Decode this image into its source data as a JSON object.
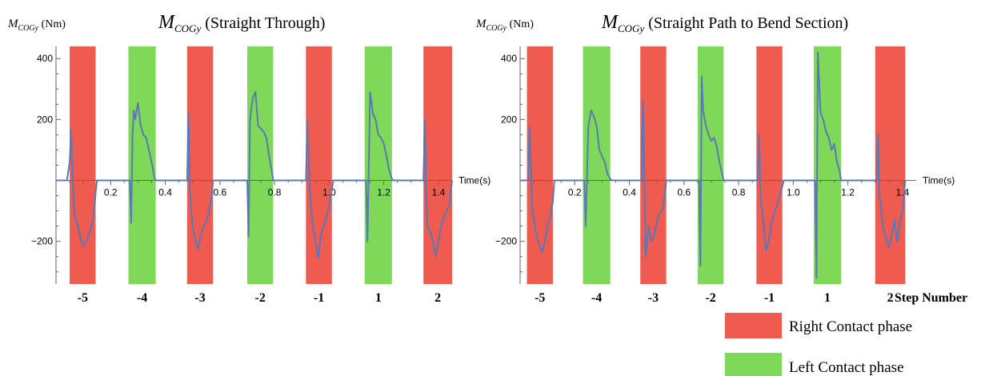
{
  "chart_data": [
    {
      "type": "line",
      "title": "(Straight Through)",
      "title_symbol": "M",
      "title_subscript": "COGy",
      "ylabel_symbol": "M",
      "ylabel_subscript": "COGy",
      "ylabel_unit": "(Nm)",
      "xlabel": "Time(s)",
      "xlim": [
        0,
        1.45
      ],
      "ylim": [
        -340,
        440
      ],
      "x_ticks": [
        "0.2",
        "0.4",
        "0.6",
        "0.8",
        "1.0",
        "1.2",
        "1.4"
      ],
      "y_ticks": [
        "400",
        "200",
        "−200"
      ],
      "grid": false,
      "phases": [
        {
          "side": "right",
          "start": 0.05,
          "end": 0.145,
          "step": "-5"
        },
        {
          "side": "left",
          "start": 0.265,
          "end": 0.365,
          "step": "-4"
        },
        {
          "side": "right",
          "start": 0.48,
          "end": 0.575,
          "step": "-3"
        },
        {
          "side": "left",
          "start": 0.7,
          "end": 0.795,
          "step": "-2"
        },
        {
          "side": "right",
          "start": 0.915,
          "end": 1.01,
          "step": "-1"
        },
        {
          "side": "left",
          "start": 1.13,
          "end": 1.23,
          "step": "1"
        },
        {
          "side": "right",
          "start": 1.345,
          "end": 1.45,
          "step": "2"
        }
      ],
      "series": [
        {
          "x": [
            0,
            0.04,
            0.05,
            0.055,
            0.06,
            0.065,
            0.07,
            0.08,
            0.09,
            0.1,
            0.11,
            0.12,
            0.13,
            0.14,
            0.145,
            0.15,
            0.27,
            0.275,
            0.28,
            0.285,
            0.29,
            0.3,
            0.31,
            0.32,
            0.33,
            0.34,
            0.35,
            0.36,
            0.365,
            0.37,
            0.48,
            0.485,
            0.49,
            0.5,
            0.51,
            0.52,
            0.53,
            0.54,
            0.55,
            0.56,
            0.57,
            0.575,
            0.58,
            0.7,
            0.705,
            0.71,
            0.72,
            0.73,
            0.74,
            0.75,
            0.76,
            0.77,
            0.78,
            0.79,
            0.795,
            0.8,
            0.915,
            0.92,
            0.93,
            0.94,
            0.95,
            0.96,
            0.97,
            0.98,
            0.99,
            1.0,
            1.01,
            1.015,
            1.135,
            1.14,
            1.15,
            1.16,
            1.17,
            1.18,
            1.19,
            1.2,
            1.21,
            1.22,
            1.23,
            1.235,
            1.345,
            1.35,
            1.355,
            1.36,
            1.37,
            1.38,
            1.39,
            1.4,
            1.41,
            1.42,
            1.43,
            1.44,
            1.45
          ],
          "y": [
            0,
            0,
            60,
            165,
            20,
            -80,
            -120,
            -150,
            -190,
            -215,
            -200,
            -180,
            -150,
            -100,
            -40,
            0,
            0,
            -140,
            150,
            230,
            200,
            255,
            180,
            150,
            140,
            100,
            60,
            10,
            0,
            0,
            0,
            220,
            -40,
            -150,
            -200,
            -225,
            -180,
            -150,
            -140,
            -100,
            -50,
            0,
            0,
            0,
            -185,
            200,
            270,
            290,
            180,
            170,
            160,
            140,
            80,
            30,
            0,
            0,
            0,
            200,
            -50,
            -150,
            -200,
            -255,
            -180,
            -150,
            -120,
            -80,
            -30,
            0,
            0,
            -200,
            290,
            220,
            200,
            150,
            140,
            120,
            80,
            30,
            5,
            0,
            0,
            200,
            -40,
            -150,
            -170,
            -200,
            -250,
            -200,
            -150,
            -120,
            -100,
            -80,
            0
          ]
        }
      ]
    },
    {
      "type": "line",
      "title": "(Straight Path to Bend Section)",
      "title_symbol": "M",
      "title_subscript": "COGy",
      "ylabel_symbol": "M",
      "ylabel_subscript": "COGy",
      "ylabel_unit": "(Nm)",
      "xlabel": "Time(s)",
      "xlim": [
        0,
        1.45
      ],
      "ylim": [
        -340,
        440
      ],
      "x_ticks": [
        "0.2",
        "0.4",
        "0.6",
        "0.8",
        "1.0",
        "1.2",
        "1.4"
      ],
      "y_ticks": [
        "400",
        "200",
        "−200"
      ],
      "grid": false,
      "phases": [
        {
          "side": "right",
          "start": 0.025,
          "end": 0.12,
          "step": "-5"
        },
        {
          "side": "left",
          "start": 0.23,
          "end": 0.33,
          "step": "-4"
        },
        {
          "side": "right",
          "start": 0.44,
          "end": 0.535,
          "step": "-3"
        },
        {
          "side": "left",
          "start": 0.65,
          "end": 0.745,
          "step": "-2"
        },
        {
          "side": "right",
          "start": 0.865,
          "end": 0.96,
          "step": "-1"
        },
        {
          "side": "left",
          "start": 1.075,
          "end": 1.175,
          "step": "1"
        },
        {
          "side": "right",
          "start": 1.3,
          "end": 1.41,
          "step": "2"
        }
      ],
      "series": [
        {
          "x": [
            0,
            0.03,
            0.035,
            0.045,
            0.06,
            0.07,
            0.08,
            0.09,
            0.1,
            0.11,
            0.12,
            0.125,
            0.235,
            0.24,
            0.25,
            0.26,
            0.27,
            0.28,
            0.29,
            0.3,
            0.31,
            0.32,
            0.33,
            0.335,
            0.445,
            0.45,
            0.46,
            0.47,
            0.48,
            0.49,
            0.5,
            0.51,
            0.52,
            0.53,
            0.535,
            0.655,
            0.66,
            0.665,
            0.67,
            0.68,
            0.69,
            0.7,
            0.71,
            0.72,
            0.73,
            0.74,
            0.745,
            0.87,
            0.875,
            0.88,
            0.89,
            0.9,
            0.91,
            0.92,
            0.93,
            0.94,
            0.95,
            0.96,
            0.965,
            1.08,
            1.085,
            1.09,
            1.1,
            1.11,
            1.12,
            1.13,
            1.14,
            1.15,
            1.16,
            1.17,
            1.175,
            1.305,
            1.31,
            1.315,
            1.33,
            1.35,
            1.36,
            1.37,
            1.38,
            1.39,
            1.4,
            1.41
          ],
          "y": [
            0,
            0,
            175,
            -100,
            -180,
            -210,
            -235,
            -200,
            -150,
            -120,
            -70,
            0,
            0,
            -150,
            180,
            230,
            210,
            180,
            100,
            80,
            60,
            20,
            5,
            0,
            0,
            260,
            -250,
            -150,
            -200,
            -180,
            -140,
            -110,
            -100,
            -50,
            0,
            0,
            -280,
            340,
            230,
            180,
            150,
            130,
            140,
            110,
            60,
            20,
            0,
            0,
            150,
            -50,
            -130,
            -230,
            -200,
            -140,
            -110,
            -80,
            -50,
            -20,
            0,
            0,
            -320,
            420,
            220,
            200,
            160,
            140,
            100,
            120,
            60,
            30,
            0,
            0,
            150,
            -40,
            -160,
            -220,
            -180,
            -130,
            -200,
            -140,
            -100,
            0
          ]
        }
      ]
    }
  ],
  "legend": {
    "step_number_label": "Step Number",
    "right_label": "Right Contact phase",
    "left_label": "Left Contact phase",
    "right_color": "#ef5c4f",
    "left_color": "#7fd959"
  },
  "colors": {
    "line": "#5a78b8",
    "axis": "#666666",
    "text": "#000000"
  }
}
